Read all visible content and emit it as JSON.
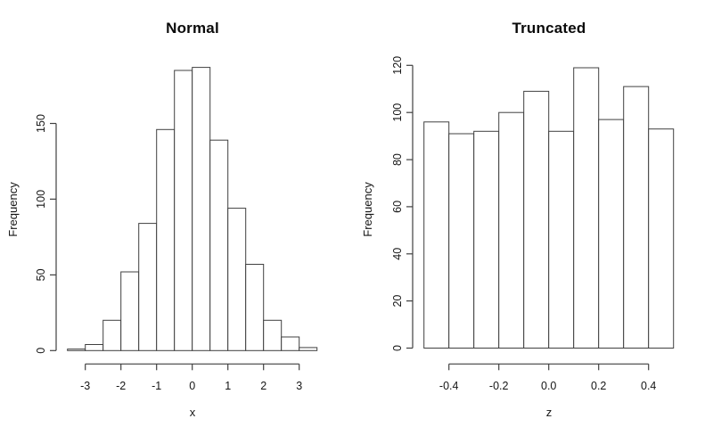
{
  "figure": {
    "background": "#ffffff",
    "bar_fill": "#ffffff",
    "bar_stroke": "#404040",
    "axis_color": "#404040",
    "text_color": "#161616"
  },
  "chart_data": [
    {
      "type": "bar",
      "subtype": "histogram",
      "title": "Normal",
      "xlabel": "x",
      "ylabel": "Frequency",
      "bin_start": -3.5,
      "bin_width": 0.5,
      "values": [
        1,
        4,
        20,
        52,
        84,
        146,
        185,
        187,
        139,
        94,
        57,
        20,
        9,
        2
      ],
      "x_ticks": [
        -3,
        -2,
        -1,
        0,
        1,
        2,
        3
      ],
      "x_tick_labels": [
        "-3",
        "-2",
        "-1",
        "0",
        "1",
        "2",
        "3"
      ],
      "y_ticks": [
        0,
        50,
        100,
        150
      ],
      "y_tick_labels": [
        "0",
        "50",
        "100",
        "150"
      ],
      "xlim": [
        -3.5,
        3.5
      ],
      "ylim": [
        0,
        190
      ],
      "grid": false,
      "legend": null
    },
    {
      "type": "bar",
      "subtype": "histogram",
      "title": "Truncated",
      "xlabel": "z",
      "ylabel": "Frequency",
      "bin_start": -0.5,
      "bin_width": 0.1,
      "values": [
        96,
        91,
        92,
        100,
        109,
        92,
        119,
        97,
        111,
        93
      ],
      "x_ticks": [
        -0.4,
        -0.2,
        0.0,
        0.2,
        0.4
      ],
      "x_tick_labels": [
        "-0.4",
        "-0.2",
        "0.0",
        "0.2",
        "0.4"
      ],
      "y_ticks": [
        0,
        20,
        40,
        60,
        80,
        100,
        120
      ],
      "y_tick_labels": [
        "0",
        "20",
        "40",
        "60",
        "80",
        "100",
        "120"
      ],
      "xlim": [
        -0.5,
        0.5
      ],
      "ylim": [
        0,
        120
      ],
      "grid": false,
      "legend": null
    }
  ]
}
